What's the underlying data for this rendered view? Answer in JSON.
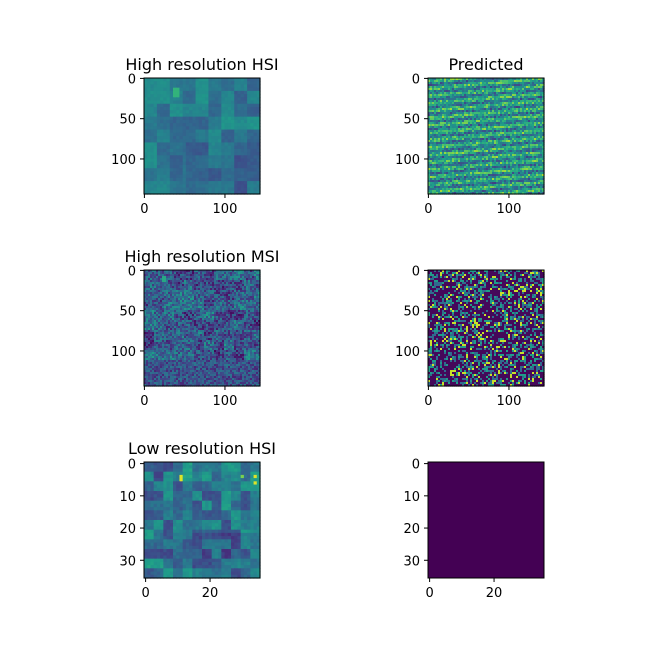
{
  "colors": {
    "viridis_dark": "#440154",
    "viridis_mid": "#21918c",
    "viridis_bright": "#fde725"
  },
  "chart_data": [
    {
      "type": "heatmap",
      "title": "High resolution HSI",
      "texture": "hsi",
      "xticks": [
        0,
        100
      ],
      "yticks": [
        0,
        50,
        100
      ],
      "xlim": [
        0,
        144
      ],
      "ylim": [
        144,
        0
      ],
      "grid": false
    },
    {
      "type": "heatmap",
      "title": "Predicted",
      "texture": "pred",
      "xticks": [
        0,
        100
      ],
      "yticks": [
        0,
        50,
        100
      ],
      "xlim": [
        0,
        144
      ],
      "ylim": [
        144,
        0
      ],
      "grid": false
    },
    {
      "type": "heatmap",
      "title": "High resolution MSI",
      "texture": "msi",
      "xticks": [
        0,
        100
      ],
      "yticks": [
        0,
        50,
        100
      ],
      "xlim": [
        0,
        144
      ],
      "ylim": [
        144,
        0
      ],
      "grid": false
    },
    {
      "type": "heatmap",
      "title": "",
      "texture": "pred2",
      "xticks": [
        0,
        100
      ],
      "yticks": [
        0,
        50,
        100
      ],
      "xlim": [
        0,
        144
      ],
      "ylim": [
        144,
        0
      ],
      "grid": false
    },
    {
      "type": "heatmap",
      "title": "Low resolution HSI",
      "texture": "lrhsi",
      "xticks": [
        0,
        20
      ],
      "yticks": [
        0,
        10,
        20,
        30
      ],
      "xlim": [
        0,
        36
      ],
      "ylim": [
        36,
        0
      ],
      "grid": false
    },
    {
      "type": "heatmap",
      "title": "",
      "texture": "flat",
      "xticks": [
        0,
        20
      ],
      "yticks": [
        0,
        10,
        20,
        30
      ],
      "xlim": [
        0,
        36
      ],
      "ylim": [
        36,
        0
      ],
      "grid": false
    }
  ]
}
